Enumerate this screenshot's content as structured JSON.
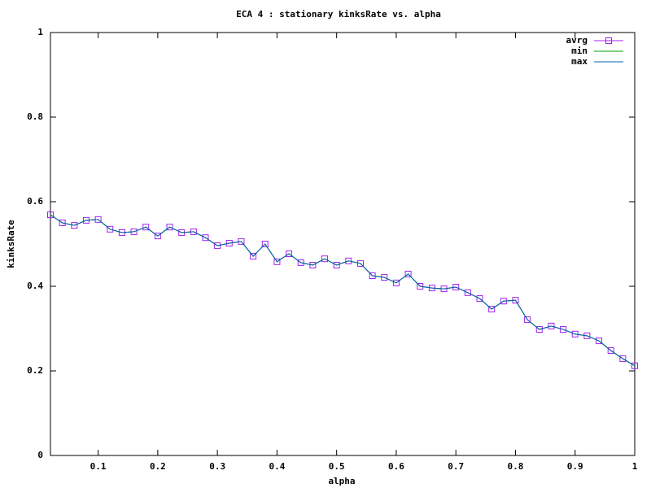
{
  "chart_data": {
    "type": "line",
    "title": "ECA 4 : stationary kinksRate vs. alpha",
    "x_label": "alpha",
    "y_label": "kinksRate",
    "x": [
      0.02,
      0.04,
      0.06,
      0.08,
      0.1,
      0.12,
      0.14,
      0.16,
      0.18,
      0.2,
      0.22,
      0.24,
      0.26,
      0.28,
      0.3,
      0.32,
      0.34,
      0.36,
      0.38,
      0.4,
      0.42,
      0.44,
      0.46,
      0.48,
      0.5,
      0.52,
      0.54,
      0.56,
      0.58,
      0.6,
      0.62,
      0.64,
      0.66,
      0.68,
      0.7,
      0.72,
      0.74,
      0.76,
      0.78,
      0.8,
      0.82,
      0.84,
      0.86,
      0.88,
      0.9,
      0.92,
      0.94,
      0.96,
      0.98,
      1
    ],
    "series": [
      {
        "name": "avrg",
        "color": "#a020f0",
        "marker": "square",
        "values": [
          0.569,
          0.55,
          0.544,
          0.556,
          0.558,
          0.535,
          0.527,
          0.529,
          0.54,
          0.519,
          0.54,
          0.527,
          0.529,
          0.515,
          0.496,
          0.502,
          0.506,
          0.471,
          0.5,
          0.458,
          0.477,
          0.456,
          0.45,
          0.465,
          0.45,
          0.46,
          0.454,
          0.425,
          0.421,
          0.408,
          0.429,
          0.4,
          0.396,
          0.394,
          0.398,
          0.385,
          0.371,
          0.346,
          0.365,
          0.367,
          0.321,
          0.298,
          0.306,
          0.298,
          0.287,
          0.283,
          0.271,
          0.248,
          0.229,
          0.212
        ]
      },
      {
        "name": "min",
        "color": "#00a000",
        "values": [
          0.569,
          0.55,
          0.544,
          0.556,
          0.558,
          0.535,
          0.527,
          0.529,
          0.54,
          0.519,
          0.54,
          0.527,
          0.529,
          0.515,
          0.496,
          0.502,
          0.506,
          0.471,
          0.5,
          0.458,
          0.477,
          0.456,
          0.45,
          0.465,
          0.45,
          0.46,
          0.454,
          0.425,
          0.421,
          0.408,
          0.429,
          0.4,
          0.396,
          0.394,
          0.398,
          0.385,
          0.371,
          0.346,
          0.365,
          0.367,
          0.321,
          0.298,
          0.306,
          0.298,
          0.287,
          0.283,
          0.271,
          0.248,
          0.229,
          0.212
        ]
      },
      {
        "name": "max",
        "color": "#0060ad",
        "values": [
          0.569,
          0.55,
          0.544,
          0.556,
          0.558,
          0.535,
          0.527,
          0.529,
          0.54,
          0.519,
          0.54,
          0.527,
          0.529,
          0.515,
          0.496,
          0.502,
          0.506,
          0.471,
          0.5,
          0.458,
          0.477,
          0.456,
          0.45,
          0.465,
          0.45,
          0.46,
          0.454,
          0.425,
          0.421,
          0.408,
          0.429,
          0.4,
          0.396,
          0.394,
          0.398,
          0.385,
          0.371,
          0.346,
          0.365,
          0.367,
          0.321,
          0.298,
          0.306,
          0.298,
          0.287,
          0.283,
          0.271,
          0.248,
          0.229,
          0.212
        ]
      }
    ],
    "xlim": [
      0.02,
      1
    ],
    "xticks": [
      0.1,
      0.2,
      0.3,
      0.4,
      0.5,
      0.6,
      0.7,
      0.8,
      0.9,
      1
    ],
    "ylim": [
      0,
      1
    ],
    "yticks": [
      0,
      0.2,
      0.4,
      0.6,
      0.8,
      1
    ],
    "grid": false,
    "legend": "top-right"
  }
}
